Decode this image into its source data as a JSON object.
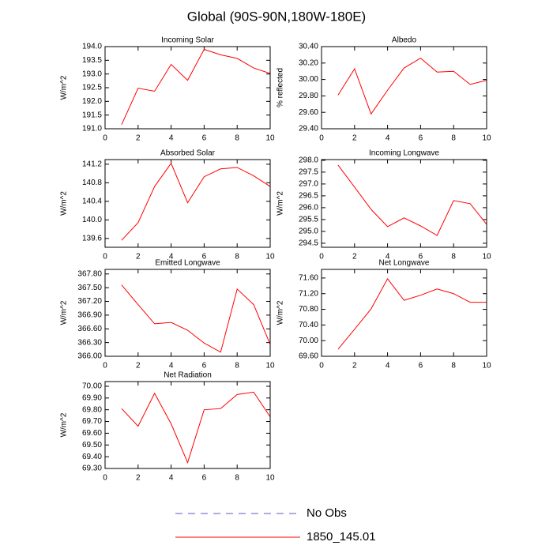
{
  "title": "Global (90S-90N,180W-180E)",
  "legend": [
    {
      "name": "No Obs",
      "color": "#5b5bbf",
      "dash": true
    },
    {
      "name": "1850_145.01",
      "color": "#ff0000",
      "dash": false
    }
  ],
  "chart_data": [
    {
      "type": "line",
      "title": "Incoming Solar",
      "y_label": "W/m^2",
      "x": [
        1,
        2,
        3,
        4,
        5,
        6,
        7,
        8,
        9,
        10
      ],
      "xlim": [
        0,
        10
      ],
      "xticks": [
        0,
        2,
        4,
        6,
        8,
        10
      ],
      "ylim": [
        191,
        194
      ],
      "yticks": [
        {
          "value": 191,
          "label": "191.0"
        },
        191.5,
        {
          "value": 192,
          "label": "192.0"
        },
        192.5,
        {
          "value": 193,
          "label": "193.0"
        },
        193.5,
        {
          "value": 194,
          "label": "194.0"
        }
      ],
      "series": [
        {
          "color": "#ff0000",
          "values": [
            191.15,
            192.48,
            192.37,
            193.35,
            192.77,
            193.9,
            193.7,
            193.57,
            193.22,
            193.02
          ]
        }
      ]
    },
    {
      "type": "line",
      "title": "Albedo",
      "y_label": "% reflected",
      "x": [
        1,
        2,
        3,
        4,
        5,
        6,
        7,
        8,
        9,
        10
      ],
      "xlim": [
        0,
        10
      ],
      "xticks": [
        0,
        2,
        4,
        6,
        8,
        10
      ],
      "ylim": [
        29.4,
        30.4
      ],
      "yticks": [
        {
          "value": 29.4,
          "label": "29.40"
        },
        {
          "value": 29.6,
          "label": "29.60"
        },
        {
          "value": 29.8,
          "label": "29.80"
        },
        {
          "value": 30.0,
          "label": "30.00"
        },
        {
          "value": 30.2,
          "label": "30.20"
        },
        {
          "value": 30.4,
          "label": "30.40"
        }
      ],
      "series": [
        {
          "color": "#ff0000",
          "values": [
            29.81,
            30.13,
            29.58,
            29.87,
            30.14,
            30.26,
            30.09,
            30.1,
            29.94,
            29.99
          ]
        }
      ]
    },
    {
      "type": "line",
      "title": "Absorbed Solar",
      "y_label": "W/m^2",
      "x": [
        1,
        2,
        3,
        4,
        5,
        6,
        7,
        8,
        9,
        10
      ],
      "xlim": [
        0,
        10
      ],
      "xticks": [
        0,
        2,
        4,
        6,
        8,
        10
      ],
      "ylim": [
        139.41,
        141.3
      ],
      "yticks": [
        139.6,
        {
          "value": 140,
          "label": "140.0"
        },
        140.4,
        140.8,
        141.2
      ],
      "series": [
        {
          "color": "#ff0000",
          "values": [
            139.56,
            139.94,
            140.72,
            141.22,
            140.37,
            140.93,
            141.1,
            141.13,
            140.95,
            140.72
          ]
        }
      ]
    },
    {
      "type": "line",
      "title": "Incoming Longwave",
      "y_label": "W/m^2",
      "x": [
        1,
        2,
        3,
        4,
        5,
        6,
        7,
        8,
        9,
        10
      ],
      "xlim": [
        0,
        10
      ],
      "xticks": [
        0,
        2,
        4,
        6,
        8,
        10
      ],
      "ylim": [
        294.33,
        298.03
      ],
      "yticks": [
        294.5,
        {
          "value": 295,
          "label": "295.0"
        },
        295.5,
        {
          "value": 296,
          "label": "296.0"
        },
        296.5,
        {
          "value": 297,
          "label": "297.0"
        },
        297.5,
        {
          "value": 298,
          "label": "298.0"
        }
      ],
      "series": [
        {
          "color": "#ff0000",
          "values": [
            297.8,
            296.87,
            295.93,
            295.2,
            295.57,
            295.23,
            294.83,
            296.3,
            296.17,
            295.3
          ]
        }
      ]
    },
    {
      "type": "line",
      "title": "Emitted Longwave",
      "y_label": "W/m^2",
      "x": [
        1,
        2,
        3,
        4,
        5,
        6,
        7,
        8,
        9,
        10
      ],
      "xlim": [
        0,
        10
      ],
      "xticks": [
        0,
        2,
        4,
        6,
        8,
        10
      ],
      "ylim": [
        366,
        367.9
      ],
      "yticks": [
        {
          "value": 366,
          "label": "366.00"
        },
        {
          "value": 366.3,
          "label": "366.30"
        },
        {
          "value": 366.6,
          "label": "366.60"
        },
        {
          "value": 366.9,
          "label": "366.90"
        },
        {
          "value": 367.2,
          "label": "367.20"
        },
        {
          "value": 367.5,
          "label": "367.50"
        },
        {
          "value": 367.8,
          "label": "367.80"
        }
      ],
      "series": [
        {
          "color": "#ff0000",
          "values": [
            367.56,
            367.13,
            366.71,
            366.74,
            366.57,
            366.29,
            366.09,
            367.47,
            367.13,
            366.26
          ]
        }
      ]
    },
    {
      "type": "line",
      "title": "Net Longwave",
      "y_label": "W/m^2",
      "x": [
        1,
        2,
        3,
        4,
        5,
        6,
        7,
        8,
        9,
        10
      ],
      "xlim": [
        0,
        10
      ],
      "xticks": [
        0,
        2,
        4,
        6,
        8,
        10
      ],
      "ylim": [
        69.6,
        71.82
      ],
      "yticks": [
        {
          "value": 69.6,
          "label": "69.60"
        },
        {
          "value": 70.0,
          "label": "70.00"
        },
        {
          "value": 70.4,
          "label": "70.40"
        },
        {
          "value": 70.8,
          "label": "70.80"
        },
        {
          "value": 71.2,
          "label": "71.20"
        },
        {
          "value": 71.6,
          "label": "71.60"
        }
      ],
      "series": [
        {
          "color": "#ff0000",
          "values": [
            69.78,
            70.29,
            70.81,
            71.58,
            71.03,
            71.16,
            71.32,
            71.2,
            70.98,
            70.98
          ]
        }
      ]
    },
    {
      "type": "line",
      "title": "Net Radiation",
      "y_label": "W/m^2",
      "x": [
        1,
        2,
        3,
        4,
        5,
        6,
        7,
        8,
        9,
        10
      ],
      "xlim": [
        0,
        10
      ],
      "xticks": [
        0,
        2,
        4,
        6,
        8,
        10
      ],
      "ylim": [
        69.3,
        70.04
      ],
      "yticks": [
        {
          "value": 69.3,
          "label": "69.30"
        },
        {
          "value": 69.4,
          "label": "69.40"
        },
        {
          "value": 69.5,
          "label": "69.50"
        },
        {
          "value": 69.6,
          "label": "69.60"
        },
        {
          "value": 69.7,
          "label": "69.70"
        },
        {
          "value": 69.8,
          "label": "69.80"
        },
        {
          "value": 69.9,
          "label": "69.90"
        },
        {
          "value": 70.0,
          "label": "70.00"
        }
      ],
      "series": [
        {
          "color": "#ff0000",
          "values": [
            69.81,
            69.66,
            69.94,
            69.68,
            69.35,
            69.8,
            69.81,
            69.93,
            69.95,
            69.74
          ]
        }
      ]
    }
  ]
}
